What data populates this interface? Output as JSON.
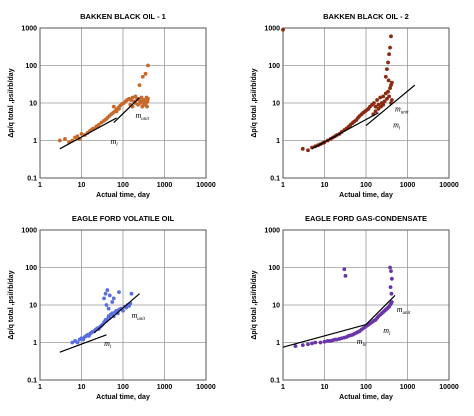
{
  "chart_data": [
    {
      "type": "scatter",
      "title": "BAKKEN BLACK OIL - 1",
      "xlabel": "Actual time, day",
      "ylabel": "Δp/q total ,psi/rb/day",
      "xscale": "log",
      "yscale": "log",
      "xlim": [
        1,
        10000
      ],
      "ylim": [
        0.1,
        1000
      ],
      "xticks": [
        "1",
        "10",
        "100",
        "1000",
        "10000"
      ],
      "yticks": [
        "0.1",
        "1",
        "10",
        "100",
        "1000"
      ],
      "grid": true,
      "marker_color": "#c8682a",
      "series": [
        {
          "x": [
            3,
            4,
            5,
            6,
            7,
            8,
            9,
            10,
            12,
            14,
            16,
            18,
            20,
            23,
            26,
            30,
            34,
            38,
            42,
            47,
            52,
            58,
            64,
            70,
            78,
            86,
            95,
            105,
            115,
            125,
            140,
            155,
            170,
            185,
            200,
            220,
            240,
            260,
            280,
            300,
            320,
            340,
            360,
            380,
            400,
            250,
            300,
            350,
            400,
            60,
            70,
            80,
            150,
            170,
            200,
            230,
            260,
            290,
            310,
            330,
            350,
            370,
            390
          ],
          "y": [
            1.0,
            1.1,
            0.9,
            1.0,
            1.2,
            1.3,
            1.1,
            1.5,
            1.4,
            1.6,
            1.8,
            2.0,
            2.1,
            2.4,
            2.6,
            3.0,
            3.3,
            3.6,
            4.0,
            4.5,
            5.0,
            5.5,
            6.0,
            6.8,
            7.5,
            8.5,
            9.5,
            10,
            11,
            12,
            13,
            12,
            14,
            11,
            15,
            13,
            12,
            10,
            14,
            11,
            9,
            12,
            10,
            8,
            13,
            30,
            50,
            60,
            100,
            8,
            6,
            7,
            9,
            8,
            10,
            9,
            11,
            8,
            12,
            10,
            9,
            14,
            11
          ]
        }
      ],
      "fit_lines": [
        {
          "name": "m_l",
          "x": [
            3,
            70
          ],
          "y": [
            0.6,
            4.0
          ]
        },
        {
          "name": "m_unit",
          "x": [
            60,
            250
          ],
          "y": [
            3.0,
            14
          ]
        }
      ],
      "annotations": [
        {
          "main": "m",
          "sub": "unit",
          "x": 200,
          "y": 4.0
        },
        {
          "main": "m",
          "sub": "l",
          "x": 50,
          "y": 0.8
        }
      ]
    },
    {
      "type": "scatter",
      "title": "BAKKEN BLACK OIL - 2",
      "xlabel": "Actual time, day",
      "ylabel": "Δp/q total ,psi/rb/day",
      "xscale": "log",
      "yscale": "log",
      "xlim": [
        1,
        10000
      ],
      "ylim": [
        0.1,
        1000
      ],
      "xticks": [
        "1",
        "10",
        "100",
        "1000",
        "10000"
      ],
      "yticks": [
        "0.1",
        "1",
        "10",
        "100",
        "1000"
      ],
      "grid": true,
      "marker_color": "#8b2a10",
      "series": [
        {
          "x": [
            1,
            3,
            4,
            5,
            6,
            7,
            8,
            9,
            10,
            12,
            14,
            16,
            18,
            20,
            23,
            26,
            30,
            34,
            38,
            42,
            47,
            52,
            58,
            64,
            70,
            78,
            86,
            95,
            105,
            115,
            125,
            140,
            155,
            170,
            185,
            200,
            220,
            240,
            260,
            280,
            300,
            320,
            340,
            360,
            380,
            400,
            420,
            300,
            320,
            340,
            360,
            380,
            400,
            150,
            170,
            200,
            230,
            260,
            400,
            420,
            350
          ],
          "y": [
            900,
            0.6,
            0.55,
            0.65,
            0.7,
            0.75,
            0.8,
            0.85,
            0.9,
            1.0,
            1.1,
            1.2,
            1.3,
            1.4,
            1.5,
            1.7,
            1.9,
            2.1,
            2.3,
            2.6,
            2.9,
            3.2,
            3.5,
            4.0,
            4.5,
            5.0,
            5.5,
            6.0,
            6.5,
            7.0,
            8.0,
            9.0,
            10,
            8,
            12,
            9,
            14,
            10,
            15,
            11,
            18,
            13,
            20,
            15,
            25,
            30,
            35,
            50,
            80,
            120,
            200,
            300,
            600,
            5,
            6,
            7,
            8,
            9,
            10,
            12,
            40
          ]
        }
      ],
      "fit_lines": [
        {
          "name": "m_l",
          "x": [
            5,
            200
          ],
          "y": [
            0.6,
            5.5
          ]
        },
        {
          "name": "m_unit",
          "x": [
            100,
            1500
          ],
          "y": [
            2.5,
            30
          ]
        }
      ],
      "annotations": [
        {
          "main": "m",
          "sub": "unit",
          "x": 500,
          "y": 6.0
        },
        {
          "main": "m",
          "sub": "l",
          "x": 450,
          "y": 2.2
        }
      ]
    },
    {
      "type": "scatter",
      "title": "EAGLE FORD VOLATILE OIL",
      "xlabel": "Actual time, day",
      "ylabel": "Δp/q total ,psi/rb/day",
      "xscale": "log",
      "yscale": "log",
      "xlim": [
        1,
        10000
      ],
      "ylim": [
        0.1,
        1000
      ],
      "xticks": [
        "1",
        "10",
        "100",
        "1000",
        "10000"
      ],
      "yticks": [
        "0.1",
        "1",
        "10",
        "100",
        "1000"
      ],
      "grid": true,
      "marker_color": "#5a6ee0",
      "series": [
        {
          "x": [
            6,
            7,
            8,
            9,
            10,
            11,
            12,
            13,
            14,
            15,
            16,
            17,
            18,
            20,
            22,
            24,
            26,
            28,
            30,
            32,
            35,
            38,
            40,
            42,
            45,
            48,
            50,
            55,
            60,
            65,
            70,
            75,
            80,
            90,
            100,
            110,
            120,
            130,
            140,
            150,
            160,
            35,
            38,
            40,
            42,
            45,
            48,
            55,
            60,
            80
          ],
          "y": [
            1.0,
            1.1,
            1.0,
            1.2,
            1.3,
            1.2,
            1.4,
            1.5,
            1.6,
            1.5,
            1.7,
            1.8,
            1.9,
            2.0,
            2.2,
            2.4,
            2.3,
            2.6,
            2.8,
            3.0,
            3.5,
            4.0,
            3.8,
            4.2,
            5.0,
            4.5,
            5.5,
            6.0,
            5.0,
            6.5,
            7.0,
            6.0,
            7.5,
            8.0,
            7.0,
            9.0,
            8.5,
            10,
            9.5,
            11,
            20,
            15,
            20,
            10,
            25,
            8,
            18,
            12,
            15,
            22
          ]
        }
      ],
      "fit_lines": [
        {
          "name": "m_l",
          "x": [
            3,
            40
          ],
          "y": [
            0.55,
            1.6
          ]
        },
        {
          "name": "m_unit",
          "x": [
            20,
            250
          ],
          "y": [
            1.8,
            20
          ]
        }
      ],
      "annotations": [
        {
          "main": "m",
          "sub": "unit",
          "x": 160,
          "y": 4.5
        },
        {
          "main": "m",
          "sub": "l",
          "x": 35,
          "y": 0.8
        }
      ]
    },
    {
      "type": "scatter",
      "title": "EAGLE FORD GAS-CONDENSATE",
      "xlabel": "Actual time, day",
      "ylabel": "Δp/q total ,psi/rb/day",
      "xscale": "log",
      "yscale": "log",
      "xlim": [
        1,
        10000
      ],
      "ylim": [
        0.1,
        1000
      ],
      "xticks": [
        "1",
        "10",
        "100",
        "1000",
        "10000"
      ],
      "yticks": [
        "0.1",
        "1",
        "10",
        "100",
        "1000"
      ],
      "grid": true,
      "marker_color": "#6a35a8",
      "series": [
        {
          "x": [
            2,
            3,
            4,
            5,
            6,
            8,
            10,
            12,
            14,
            16,
            18,
            20,
            23,
            26,
            30,
            34,
            38,
            42,
            47,
            52,
            58,
            64,
            70,
            78,
            86,
            95,
            105,
            115,
            125,
            140,
            155,
            170,
            185,
            200,
            220,
            240,
            260,
            280,
            300,
            320,
            340,
            360,
            380,
            400,
            420,
            30,
            32,
            380,
            400,
            420,
            390,
            410
          ],
          "y": [
            0.8,
            0.85,
            0.9,
            0.95,
            1.0,
            1.0,
            1.05,
            1.1,
            1.1,
            1.15,
            1.2,
            1.2,
            1.25,
            1.3,
            1.35,
            1.4,
            1.5,
            1.55,
            1.6,
            1.7,
            1.8,
            1.9,
            2.0,
            2.2,
            2.4,
            2.6,
            2.8,
            3.0,
            3.2,
            3.5,
            3.8,
            4.0,
            4.5,
            5.0,
            5.5,
            6.0,
            6.5,
            7.0,
            7.5,
            8.0,
            8.5,
            9.0,
            10,
            11,
            12,
            90,
            60,
            100,
            80,
            50,
            30,
            20
          ]
        }
      ],
      "fit_lines": [
        {
          "name": "m_bl",
          "x": [
            1,
            100
          ],
          "y": [
            0.75,
            3.0
          ]
        },
        {
          "name": "m_l",
          "x": [
            100,
            500
          ],
          "y": [
            3.0,
            18
          ]
        }
      ],
      "annotations": [
        {
          "main": "m",
          "sub": "unit",
          "x": 550,
          "y": 6.5
        },
        {
          "main": "m",
          "sub": "l",
          "x": 260,
          "y": 1.8
        },
        {
          "main": "m",
          "sub": "bl",
          "x": 60,
          "y": 0.9
        }
      ]
    }
  ]
}
